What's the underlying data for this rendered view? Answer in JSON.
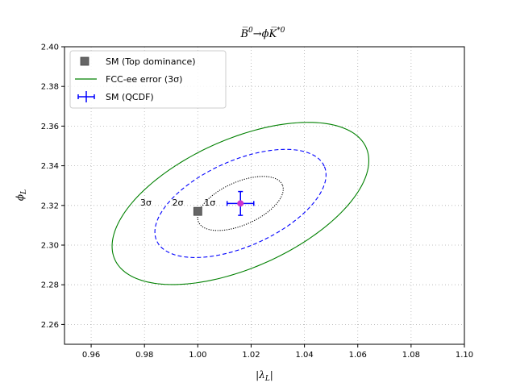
{
  "chart_data": {
    "type": "scatter",
    "title_parts": [
      "B̅",
      "0",
      "→ϕ",
      "K̅",
      "*0"
    ],
    "xlabel": "|λ_L|",
    "ylabel": "ϕ_L",
    "xlim": [
      0.95,
      1.1
    ],
    "ylim": [
      2.25,
      2.4
    ],
    "xticks": [
      0.96,
      0.98,
      1.0,
      1.02,
      1.04,
      1.06,
      1.08,
      1.1
    ],
    "xtick_labels": [
      "0.96",
      "0.98",
      "1.00",
      "1.02",
      "1.04",
      "1.06",
      "1.08",
      "1.10"
    ],
    "yticks": [
      2.26,
      2.28,
      2.3,
      2.32,
      2.34,
      2.36,
      2.38,
      2.4
    ],
    "ytick_labels": [
      "2.26",
      "2.28",
      "2.30",
      "2.32",
      "2.34",
      "2.36",
      "2.38",
      "2.40"
    ],
    "grid": true,
    "legend_position": "top-left",
    "legend": [
      {
        "label": "SM (Top dominance)",
        "marker": "square",
        "color": "#666666"
      },
      {
        "label": "FCC-ee error (3σ)",
        "marker": "line",
        "color": "#008000"
      },
      {
        "label": "SM (QCDF)",
        "marker": "errorbar",
        "color": "#0000ff"
      }
    ],
    "points": [
      {
        "name": "SM (Top dominance)",
        "x": 1.0,
        "y": 2.317,
        "marker": "square",
        "color": "#666666"
      },
      {
        "name": "SM (QCDF)",
        "x": 1.016,
        "y": 2.321,
        "xerr": 0.005,
        "yerr": 0.006,
        "marker": "circle",
        "color": "#cc33cc",
        "errcolor": "#0000ff"
      }
    ],
    "ellipses": [
      {
        "label": "1σ",
        "color": "#000000",
        "style": "dotted",
        "center": [
          1.016,
          2.321
        ],
        "angle_deg": 24.0,
        "a": 0.0172,
        "b": 0.0108
      },
      {
        "label": "2σ",
        "color": "#0000ff",
        "style": "dashed",
        "center": [
          1.016,
          2.321
        ],
        "angle_deg": 24.0,
        "a": 0.0344,
        "b": 0.0216
      },
      {
        "label": "3σ",
        "color": "#008000",
        "style": "solid",
        "center": [
          1.016,
          2.321
        ],
        "angle_deg": 24.0,
        "a": 0.0516,
        "b": 0.0324
      }
    ],
    "annotations": [
      {
        "text": "3σ",
        "x": 0.9805,
        "y": 2.3215
      },
      {
        "text": "2σ",
        "x": 0.9925,
        "y": 2.3215
      },
      {
        "text": "1σ",
        "x": 1.0045,
        "y": 2.3215
      }
    ]
  }
}
